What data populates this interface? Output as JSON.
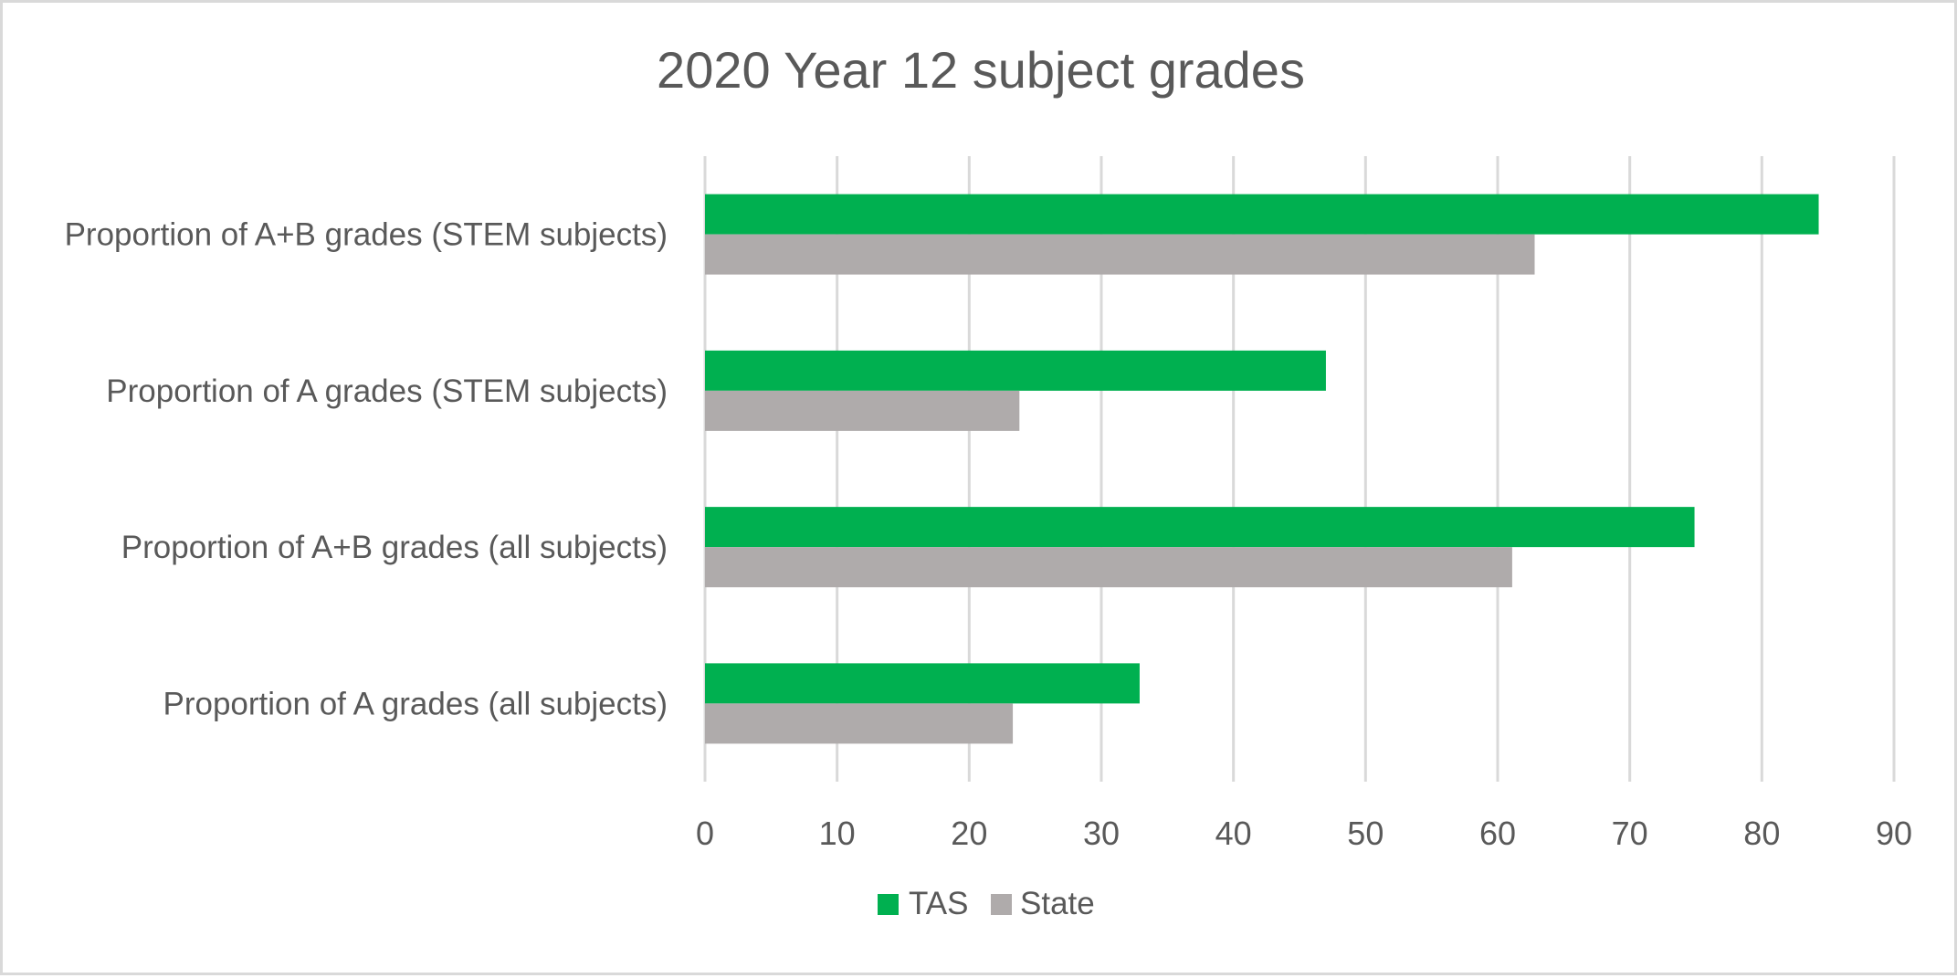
{
  "chart_data": {
    "type": "bar",
    "orientation": "horizontal",
    "title": "2020 Year 12 subject grades",
    "xlabel": "",
    "ylabel": "",
    "categories": [
      "Proportion of A+B grades (STEM subjects)",
      "Proportion of A grades (STEM subjects)",
      "Proportion of A+B grades (all subjects)",
      "Proportion of A grades (all subjects)"
    ],
    "series": [
      {
        "name": "TAS",
        "color": "#00b050",
        "values": [
          84.3,
          47.0,
          74.9,
          32.9
        ]
      },
      {
        "name": "State",
        "color": "#afabab",
        "values": [
          62.8,
          23.8,
          61.1,
          23.3
        ]
      }
    ],
    "xlim": [
      0,
      90
    ],
    "ticks": [
      0,
      10,
      20,
      30,
      40,
      50,
      60,
      70,
      80,
      90
    ],
    "grid": true,
    "legend": "bottom-center"
  }
}
